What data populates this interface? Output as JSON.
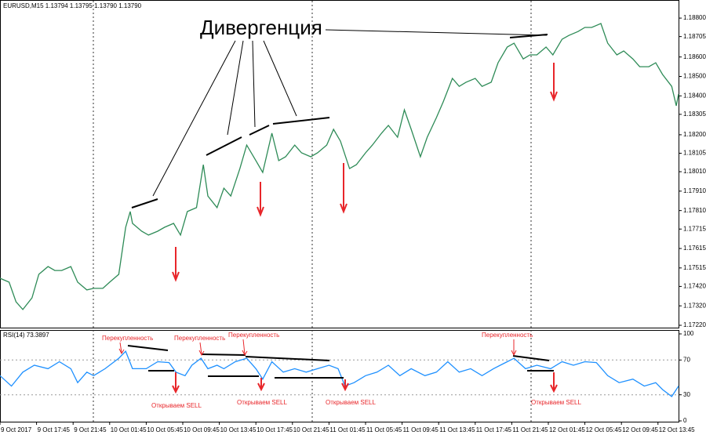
{
  "chart_data": [
    {
      "type": "line",
      "title": "EURUSD,M15  1.13794 1.13795 1.13790 1.13790",
      "annotations": [
        "Дивергенция"
      ],
      "x": [
        0,
        4,
        7,
        10,
        14,
        17,
        21,
        24,
        27,
        31,
        34,
        38,
        41,
        45,
        48,
        52,
        55,
        57,
        58,
        62,
        65,
        69,
        72,
        76,
        79,
        82,
        86,
        89,
        91,
        95,
        98,
        101,
        105,
        108,
        112,
        115,
        119,
        122,
        125,
        129,
        132,
        136,
        139,
        143,
        146,
        149,
        153,
        156,
        160,
        163,
        167,
        170,
        174,
        177,
        180,
        184,
        187,
        191,
        194,
        198,
        201,
        204,
        208,
        211,
        215,
        218,
        222,
        225,
        229,
        232,
        235,
        239,
        242,
        246,
        249,
        253,
        256,
        259,
        263,
        266,
        270,
        273,
        277,
        280,
        284,
        287,
        290,
        294,
        296,
        297
      ],
      "series": [
        {
          "color": "#2e8b57",
          "values": [
            1.17462,
            1.17442,
            1.17341,
            1.17301,
            1.17361,
            1.17482,
            1.17522,
            1.17502,
            1.17502,
            1.17522,
            1.17442,
            1.17402,
            1.1741,
            1.1741,
            1.17442,
            1.17482,
            1.17724,
            1.17805,
            1.17744,
            1.17704,
            1.17684,
            1.17704,
            1.17724,
            1.17744,
            1.17684,
            1.17805,
            1.17825,
            1.18046,
            1.17885,
            1.17825,
            1.17925,
            1.17885,
            1.18026,
            1.18147,
            1.18067,
            1.18006,
            1.18208,
            1.18067,
            1.18087,
            1.18147,
            1.18107,
            1.18087,
            1.18107,
            1.18147,
            1.18228,
            1.18167,
            1.18026,
            1.18046,
            1.18107,
            1.18147,
            1.18208,
            1.18248,
            1.18187,
            1.18328,
            1.18228,
            1.18087,
            1.18187,
            1.18288,
            1.18369,
            1.1849,
            1.18449,
            1.1847,
            1.1849,
            1.18449,
            1.1847,
            1.1857,
            1.18651,
            1.18671,
            1.1859,
            1.18611,
            1.18611,
            1.18651,
            1.18611,
            1.18691,
            1.18711,
            1.18731,
            1.18752,
            1.18752,
            1.18772,
            1.18671,
            1.18611,
            1.18631,
            1.1859,
            1.1855,
            1.1855,
            1.1857,
            1.1851,
            1.18449,
            1.18349,
            1.18409
          ]
        }
      ],
      "xlim": [
        0,
        297
      ],
      "xticks": [
        {
          "value": 0,
          "label": "9 Oct 2017"
        },
        {
          "value": 16,
          "label": "9 Oct 17:45"
        },
        {
          "value": 32,
          "label": "9 Oct 21:45"
        },
        {
          "value": 48,
          "label": "10 Oct 01:45"
        },
        {
          "value": 64,
          "label": "10 Oct 05:45"
        },
        {
          "value": 80,
          "label": "10 Oct 09:45"
        },
        {
          "value": 96,
          "label": "10 Oct 13:45"
        },
        {
          "value": 112,
          "label": "10 Oct 17:45"
        },
        {
          "value": 128,
          "label": "10 Oct 21:45"
        },
        {
          "value": 144,
          "label": "11 Oct 01:45"
        },
        {
          "value": 160,
          "label": "11 Oct 05:45"
        },
        {
          "value": 176,
          "label": "11 Oct 09:45"
        },
        {
          "value": 192,
          "label": "11 Oct 13:45"
        },
        {
          "value": 208,
          "label": "11 Oct 17:45"
        },
        {
          "value": 224,
          "label": "11 Oct 21:45"
        },
        {
          "value": 240,
          "label": "12 Oct 01:45"
        },
        {
          "value": 256,
          "label": "12 Oct 05:45"
        },
        {
          "value": 272,
          "label": "12 Oct 09:45"
        },
        {
          "value": 288,
          "label": "12 Oct 13:45"
        }
      ],
      "ylim": [
        1.17208,
        1.18885
      ],
      "yticks": [
        {
          "value": 1.188,
          "label": "1.18800"
        },
        {
          "value": 1.18705,
          "label": "1.18705"
        },
        {
          "value": 1.186,
          "label": "1.18600"
        },
        {
          "value": 1.185,
          "label": "1.18500"
        },
        {
          "value": 1.184,
          "label": "1.18400"
        },
        {
          "value": 1.18305,
          "label": "1.18305"
        },
        {
          "value": 1.182,
          "label": "1.18200"
        },
        {
          "value": 1.18105,
          "label": "1.18105"
        },
        {
          "value": 1.1801,
          "label": "1.18010"
        },
        {
          "value": 1.1791,
          "label": "1.17910"
        },
        {
          "value": 1.1781,
          "label": "1.17810"
        },
        {
          "value": 1.17715,
          "label": "1.17715"
        },
        {
          "value": 1.17615,
          "label": "1.17615"
        },
        {
          "value": 1.17515,
          "label": "1.17515"
        },
        {
          "value": 1.1742,
          "label": "1.17420"
        },
        {
          "value": 1.1732,
          "label": "1.17320"
        },
        {
          "value": 1.1722,
          "label": "1.17220"
        }
      ]
    },
    {
      "type": "line",
      "title": "RSI(14) 73.3897",
      "annotations": [
        "Перекупленность",
        "Перекупленность",
        "Перекупленность",
        "Перекупленность",
        "Открываем SELL",
        "Открываем SELL",
        "Открываем SELL",
        "Открываем SELL"
      ],
      "x": [
        0,
        5,
        10,
        15,
        21,
        26,
        31,
        34,
        38,
        41,
        46,
        52,
        55,
        58,
        64,
        69,
        74,
        77,
        81,
        84,
        88,
        91,
        95,
        98,
        103,
        108,
        112,
        115,
        119,
        124,
        129,
        134,
        139,
        144,
        148,
        151,
        155,
        160,
        165,
        170,
        175,
        180,
        186,
        191,
        196,
        201,
        206,
        211,
        216,
        222,
        225,
        230,
        235,
        241,
        246,
        251,
        256,
        261,
        266,
        271,
        277,
        282,
        287,
        290,
        294,
        297
      ],
      "values": [
        52,
        40,
        56,
        64,
        60,
        68,
        60,
        44,
        56,
        52,
        60,
        72,
        80,
        60,
        60,
        68,
        67,
        56,
        52,
        64,
        72,
        60,
        64,
        60,
        68,
        72,
        60,
        48,
        68,
        56,
        60,
        56,
        60,
        64,
        60,
        40,
        44,
        52,
        56,
        64,
        52,
        60,
        52,
        56,
        68,
        56,
        60,
        52,
        60,
        68,
        72,
        60,
        64,
        60,
        68,
        64,
        68,
        67,
        52,
        44,
        48,
        40,
        44,
        36,
        28,
        40
      ],
      "color": "#1e90ff",
      "xlim": [
        0,
        297
      ],
      "ylim": [
        0,
        100
      ],
      "yticks": [
        0,
        30,
        70,
        100
      ]
    }
  ]
}
